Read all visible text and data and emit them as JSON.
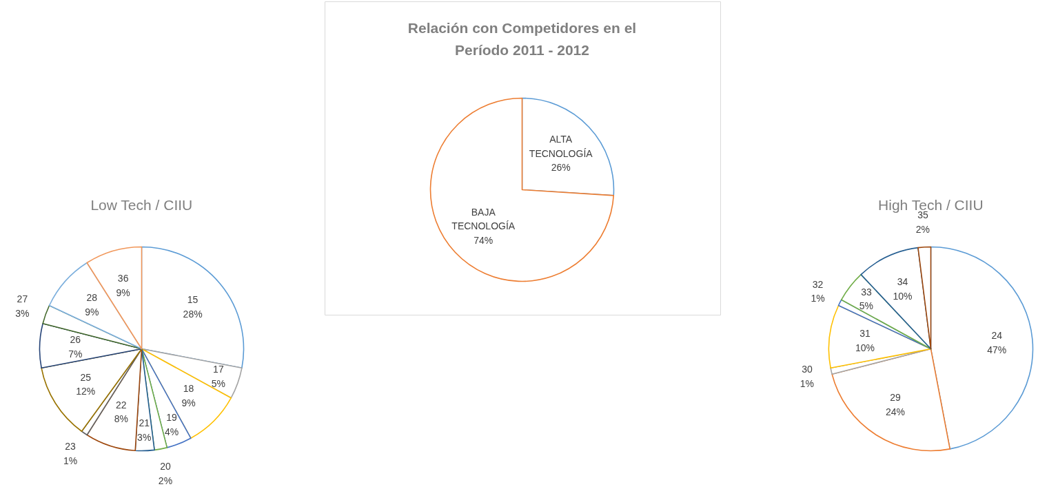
{
  "chart_data": [
    {
      "type": "pie",
      "title": "Relación con Competidores en el Período 2011 - 2012",
      "categories": [
        "ALTA TECNOLOGÍA",
        "BAJA TECNOLOGÍA"
      ],
      "values": [
        26,
        74
      ],
      "value_labels": [
        "26%",
        "74%"
      ],
      "colors": [
        "#5b9bd5",
        "#ed7d31"
      ],
      "legend": false
    },
    {
      "type": "pie",
      "title": "Low Tech / CIIU",
      "categories": [
        "15",
        "17",
        "18",
        "19",
        "20",
        "21",
        "22",
        "23",
        "25",
        "26",
        "27",
        "28",
        "36"
      ],
      "values": [
        28,
        5,
        9,
        4,
        2,
        3,
        8,
        1,
        12,
        7,
        3,
        9,
        9
      ],
      "value_labels": [
        "28%",
        "5%",
        "9%",
        "4%",
        "2%",
        "3%",
        "8%",
        "1%",
        "12%",
        "7%",
        "3%",
        "9%",
        "9%"
      ],
      "colors": [
        "#5b9bd5",
        "#a5a5a5",
        "#ffc000",
        "#4472c4",
        "#70ad47",
        "#255e91",
        "#9e480e",
        "#636363",
        "#997300",
        "#264478",
        "#43682b",
        "#7cafdd",
        "#f1975a"
      ],
      "legend": false
    },
    {
      "type": "pie",
      "title": "High Tech / CIIU",
      "categories": [
        "24",
        "29",
        "30",
        "31",
        "32",
        "33",
        "34",
        "35"
      ],
      "values": [
        47,
        24,
        1,
        10,
        1,
        5,
        10,
        2
      ],
      "value_labels": [
        "47%",
        "24%",
        "1%",
        "10%",
        "1%",
        "5%",
        "10%",
        "2%"
      ],
      "colors": [
        "#5b9bd5",
        "#ed7d31",
        "#a5a5a5",
        "#ffc000",
        "#4472c4",
        "#70ad47",
        "#255e91",
        "#9e480e"
      ],
      "legend": false
    }
  ]
}
